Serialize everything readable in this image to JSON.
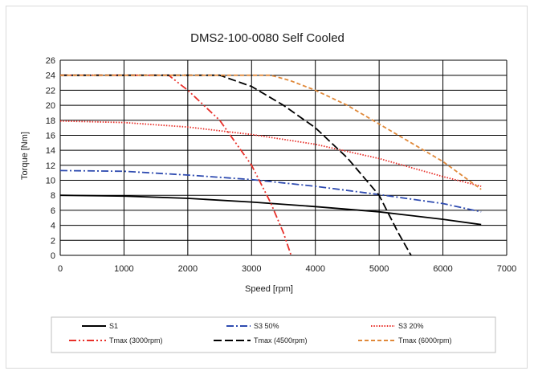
{
  "chart_data": {
    "type": "line",
    "title": "DMS2-100-0080 Self Cooled",
    "xlabel": "Speed [rpm]",
    "ylabel": "Torque [Nm]",
    "xlim": [
      0,
      7000
    ],
    "ylim": [
      0,
      26
    ],
    "xticks": [
      0,
      1000,
      2000,
      3000,
      4000,
      5000,
      6000,
      7000
    ],
    "yticks": [
      0,
      2,
      4,
      6,
      8,
      10,
      12,
      14,
      16,
      18,
      20,
      22,
      24,
      26
    ],
    "grid": true,
    "legend_position": "bottom",
    "series": [
      {
        "name": "S1",
        "color": "#000000",
        "dash": "solid",
        "x": [
          0,
          1000,
          2000,
          3000,
          4000,
          5000,
          6000,
          6600
        ],
        "y": [
          8.0,
          7.9,
          7.6,
          7.1,
          6.5,
          5.8,
          4.8,
          4.1
        ]
      },
      {
        "name": "S3 50%",
        "color": "#2e4bb0",
        "dash": "dashdot",
        "x": [
          0,
          1000,
          2000,
          3000,
          4000,
          5000,
          6000,
          6600
        ],
        "y": [
          11.3,
          11.2,
          10.7,
          10.1,
          9.2,
          8.1,
          6.9,
          5.8
        ]
      },
      {
        "name": "S3 20%",
        "color": "#e8302a",
        "dash": "dotted",
        "x": [
          0,
          1000,
          2000,
          3000,
          4000,
          5000,
          6000,
          6600
        ],
        "y": [
          17.9,
          17.7,
          17.1,
          16.1,
          14.8,
          12.9,
          10.5,
          9.2
        ]
      },
      {
        "name": "Tmax (3000rpm)",
        "color": "#e8302a",
        "dash": "dashdotdot",
        "x": [
          0,
          1700,
          2000,
          2500,
          3000,
          3300,
          3500,
          3620
        ],
        "y": [
          24,
          24,
          22,
          18,
          12,
          7,
          3,
          0
        ]
      },
      {
        "name": "Tmax (4500rpm)",
        "color": "#000000",
        "dash": "longdash",
        "x": [
          0,
          2500,
          3000,
          3500,
          4000,
          4500,
          5000,
          5300,
          5500
        ],
        "y": [
          24,
          24,
          22.5,
          20,
          17,
          13,
          8,
          3,
          0
        ]
      },
      {
        "name": "Tmax (6000rpm)",
        "color": "#e0893a",
        "dash": "dashed",
        "x": [
          0,
          3300,
          3600,
          4000,
          4500,
          5000,
          5500,
          6000,
          6600
        ],
        "y": [
          24,
          24,
          23.3,
          22,
          20,
          17.5,
          15,
          12.5,
          8.8
        ]
      }
    ]
  }
}
